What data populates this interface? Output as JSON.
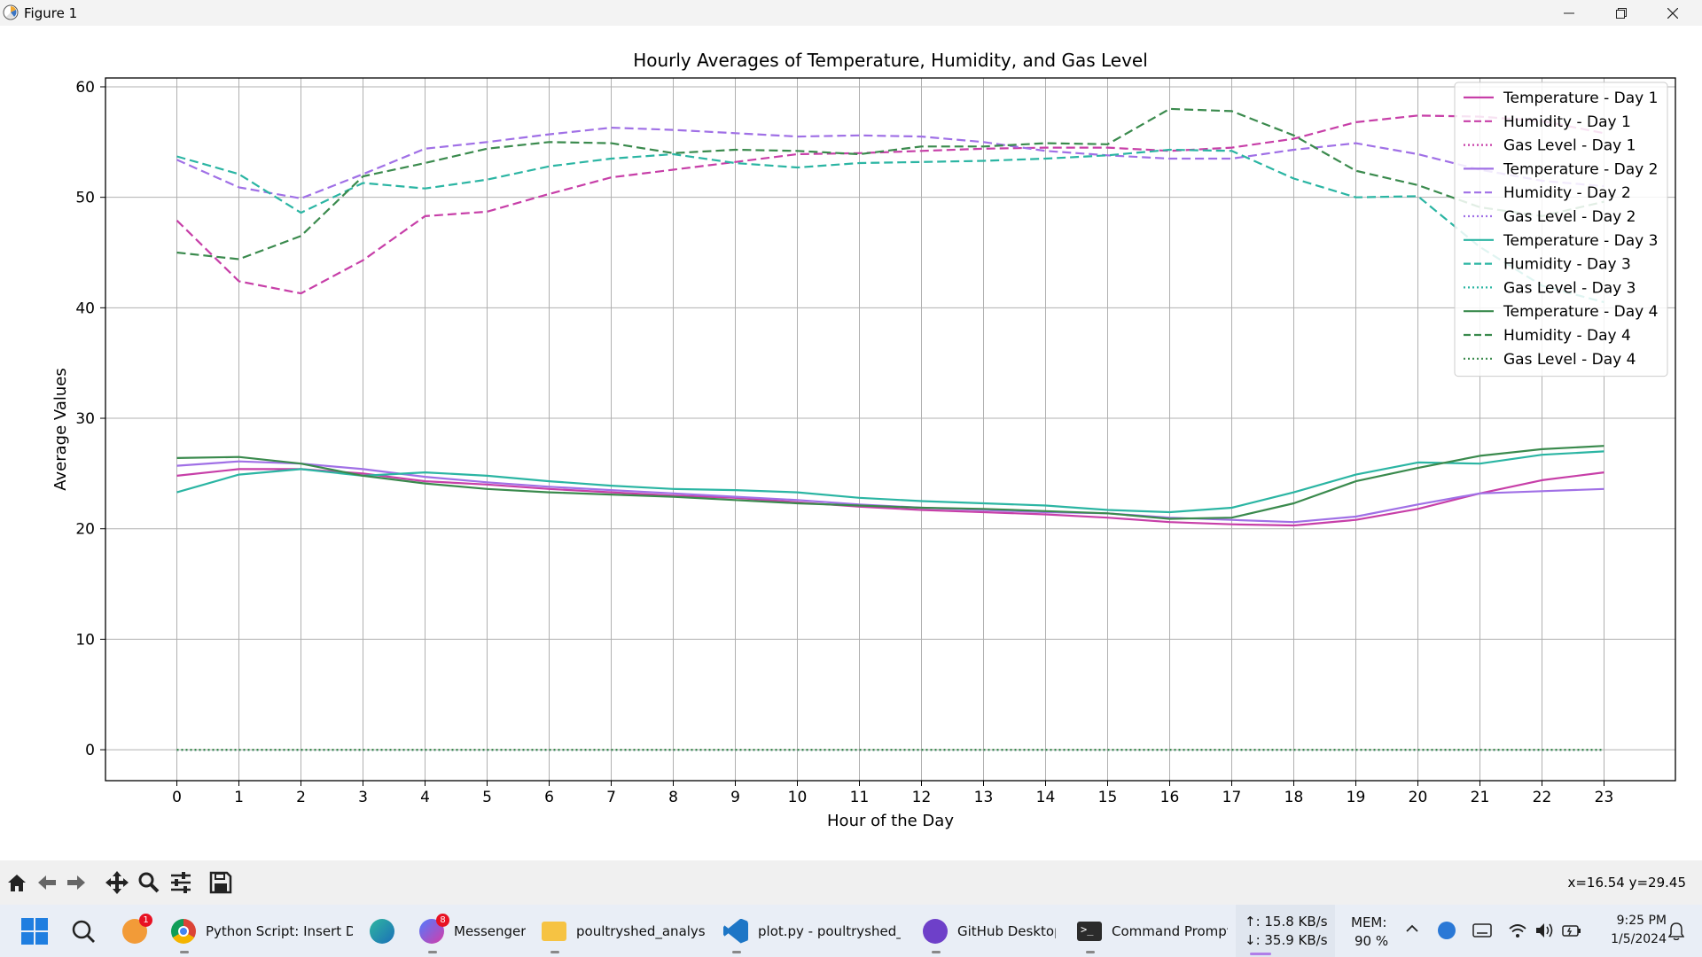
{
  "window": {
    "title": "Figure 1",
    "controls": {
      "minimize_icon": "minimize-icon",
      "maximize_icon": "restore-icon",
      "close_icon": "close-icon"
    }
  },
  "chart_data": {
    "type": "line",
    "title": "Hourly Averages of Temperature, Humidity, and Gas Level",
    "xlabel": "Hour of the Day",
    "ylabel": "Average Values",
    "xlim": [
      -1.15,
      24.15
    ],
    "ylim": [
      -2.8,
      60.8
    ],
    "x": [
      0,
      1,
      2,
      3,
      4,
      5,
      6,
      7,
      8,
      9,
      10,
      11,
      12,
      13,
      14,
      15,
      16,
      17,
      18,
      19,
      20,
      21,
      22,
      23
    ],
    "x_ticks": [
      "0",
      "1",
      "2",
      "3",
      "4",
      "5",
      "6",
      "7",
      "8",
      "9",
      "10",
      "11",
      "12",
      "13",
      "14",
      "15",
      "16",
      "17",
      "18",
      "19",
      "20",
      "21",
      "22",
      "23"
    ],
    "y_ticks": [
      "0",
      "10",
      "20",
      "30",
      "40",
      "50",
      "60"
    ],
    "y_tick_values": [
      0,
      10,
      20,
      30,
      40,
      50,
      60
    ],
    "grid": true,
    "legend_position": "top-right",
    "series": [
      {
        "name": "Temperature - Day 1",
        "color": "#c73fa8",
        "style": "solid",
        "values": [
          24.8,
          25.4,
          25.4,
          25.0,
          24.3,
          24.0,
          23.6,
          23.3,
          23.0,
          22.8,
          22.4,
          22.0,
          21.7,
          21.5,
          21.3,
          21.0,
          20.6,
          20.4,
          20.3,
          20.8,
          21.8,
          23.2,
          24.4,
          25.1
        ]
      },
      {
        "name": "Humidity - Day 1",
        "color": "#c73fa8",
        "style": "dashed",
        "values": [
          47.9,
          42.4,
          41.3,
          44.3,
          48.3,
          48.7,
          50.3,
          51.8,
          52.5,
          53.2,
          53.9,
          54.0,
          54.2,
          54.4,
          54.5,
          54.5,
          54.2,
          54.5,
          55.3,
          56.8,
          57.4,
          57.3,
          56.9,
          55.8
        ]
      },
      {
        "name": "Gas Level - Day 1",
        "color": "#c73fa8",
        "style": "dotted",
        "values": [
          0,
          0,
          0,
          0,
          0,
          0,
          0,
          0,
          0,
          0,
          0,
          0,
          0,
          0,
          0,
          0,
          0,
          0,
          0,
          0,
          0,
          0,
          0,
          0
        ]
      },
      {
        "name": "Temperature - Day 2",
        "color": "#a070e6",
        "style": "solid",
        "values": [
          25.7,
          26.1,
          25.9,
          25.4,
          24.7,
          24.2,
          23.8,
          23.5,
          23.2,
          22.9,
          22.6,
          22.2,
          21.9,
          21.7,
          21.5,
          21.4,
          21.0,
          20.8,
          20.6,
          21.1,
          22.2,
          23.2,
          23.4,
          23.6
        ]
      },
      {
        "name": "Humidity - Day 2",
        "color": "#a070e6",
        "style": "dashed",
        "values": [
          53.4,
          50.9,
          49.9,
          52.1,
          54.4,
          55.0,
          55.7,
          56.3,
          56.1,
          55.8,
          55.5,
          55.6,
          55.5,
          55.0,
          54.2,
          53.8,
          53.5,
          53.5,
          54.3,
          54.9,
          53.9,
          52.5,
          51.5,
          51.0
        ]
      },
      {
        "name": "Gas Level - Day 2",
        "color": "#a070e6",
        "style": "dotted",
        "values": [
          0,
          0,
          0,
          0,
          0,
          0,
          0,
          0,
          0,
          0,
          0,
          0,
          0,
          0,
          0,
          0,
          0,
          0,
          0,
          0,
          0,
          0,
          0,
          0
        ]
      },
      {
        "name": "Temperature - Day 3",
        "color": "#2bb5a3",
        "style": "solid",
        "values": [
          23.3,
          24.9,
          25.4,
          24.8,
          25.1,
          24.8,
          24.3,
          23.9,
          23.6,
          23.5,
          23.3,
          22.8,
          22.5,
          22.3,
          22.1,
          21.7,
          21.5,
          21.9,
          23.3,
          24.9,
          26.0,
          25.9,
          26.7,
          27.0
        ]
      },
      {
        "name": "Humidity - Day 3",
        "color": "#2bb5a3",
        "style": "dashed",
        "values": [
          53.7,
          52.1,
          48.6,
          51.3,
          50.8,
          51.6,
          52.8,
          53.5,
          53.9,
          53.1,
          52.7,
          53.1,
          53.2,
          53.3,
          53.5,
          53.8,
          54.3,
          54.2,
          51.7,
          50.0,
          50.1,
          45.5,
          42.0,
          40.5
        ]
      },
      {
        "name": "Gas Level - Day 3",
        "color": "#2bb5a3",
        "style": "dotted",
        "values": [
          0,
          0,
          0,
          0,
          0,
          0,
          0,
          0,
          0,
          0,
          0,
          0,
          0,
          0,
          0,
          0,
          0,
          0,
          0,
          0,
          0,
          0,
          0,
          0
        ]
      },
      {
        "name": "Temperature - Day 4",
        "color": "#3a8a4d",
        "style": "solid",
        "values": [
          26.4,
          26.5,
          25.9,
          24.8,
          24.1,
          23.6,
          23.3,
          23.1,
          22.9,
          22.6,
          22.3,
          22.1,
          21.9,
          21.8,
          21.6,
          21.4,
          20.9,
          21.0,
          22.3,
          24.3,
          25.5,
          26.6,
          27.2,
          27.5
        ]
      },
      {
        "name": "Humidity - Day 4",
        "color": "#3a8a4d",
        "style": "dashed",
        "values": [
          45.0,
          44.4,
          46.5,
          51.9,
          53.1,
          54.4,
          55.0,
          54.9,
          54.0,
          54.3,
          54.2,
          53.9,
          54.6,
          54.6,
          54.9,
          54.8,
          58.0,
          57.8,
          55.6,
          52.4,
          51.1,
          49.1,
          48.3,
          49.6
        ]
      },
      {
        "name": "Gas Level - Day 4",
        "color": "#3a8a4d",
        "style": "dotted",
        "values": [
          0,
          0,
          0,
          0,
          0,
          0,
          0,
          0,
          0,
          0,
          0,
          0,
          0,
          0,
          0,
          0,
          0,
          0,
          0,
          0,
          0,
          0,
          0,
          0
        ]
      }
    ]
  },
  "toolbar": {
    "buttons": [
      {
        "name": "home-icon"
      },
      {
        "name": "back-arrow-icon"
      },
      {
        "name": "forward-arrow-icon"
      },
      {
        "name": "pan-icon"
      },
      {
        "name": "zoom-icon"
      },
      {
        "name": "configure-subplots-icon"
      },
      {
        "name": "save-icon"
      }
    ],
    "coords": "x=16.54 y=29.45"
  },
  "taskbar": {
    "start_icon": "windows-start-icon",
    "search_icon": "search-icon",
    "apps": [
      {
        "icon": "moon-app-icon",
        "label": "",
        "badge": "1",
        "color": "#f29b38"
      },
      {
        "icon": "chrome-icon",
        "label": "Python Script: Insert Da",
        "badge": "",
        "color": "#3c8b4b"
      },
      {
        "icon": "edge-dev-icon",
        "label": "",
        "badge": "",
        "color": "#1f8a70"
      },
      {
        "icon": "messenger-icon",
        "label": "Messenger",
        "badge": "8",
        "color": "#8a5cf0"
      },
      {
        "icon": "folder-icon",
        "label": "poultryshed_analysis",
        "badge": "",
        "color": "#f6c343"
      },
      {
        "icon": "vscode-icon",
        "label": "plot.py - poultryshed_ar",
        "badge": "",
        "color": "#1d76c6"
      },
      {
        "icon": "github-desktop-icon",
        "label": "GitHub Desktop",
        "badge": "",
        "color": "#6e40c9"
      },
      {
        "icon": "command-prompt-icon",
        "label": "Command Prompt",
        "badge": "",
        "color": "#2b2b2b"
      }
    ],
    "net_up": "↑: 15.8 KB/s",
    "net_down": "↓: 35.9 KB/s",
    "mem_label": "MEM:",
    "mem_value": "90 %",
    "time": "9:25 PM",
    "date": "1/5/2024",
    "tray_icons": [
      "chevron-up-icon",
      "clock-app-icon",
      "keyboard-icon",
      "wifi-icon",
      "volume-icon",
      "battery-icon",
      "notification-bell-icon"
    ]
  }
}
